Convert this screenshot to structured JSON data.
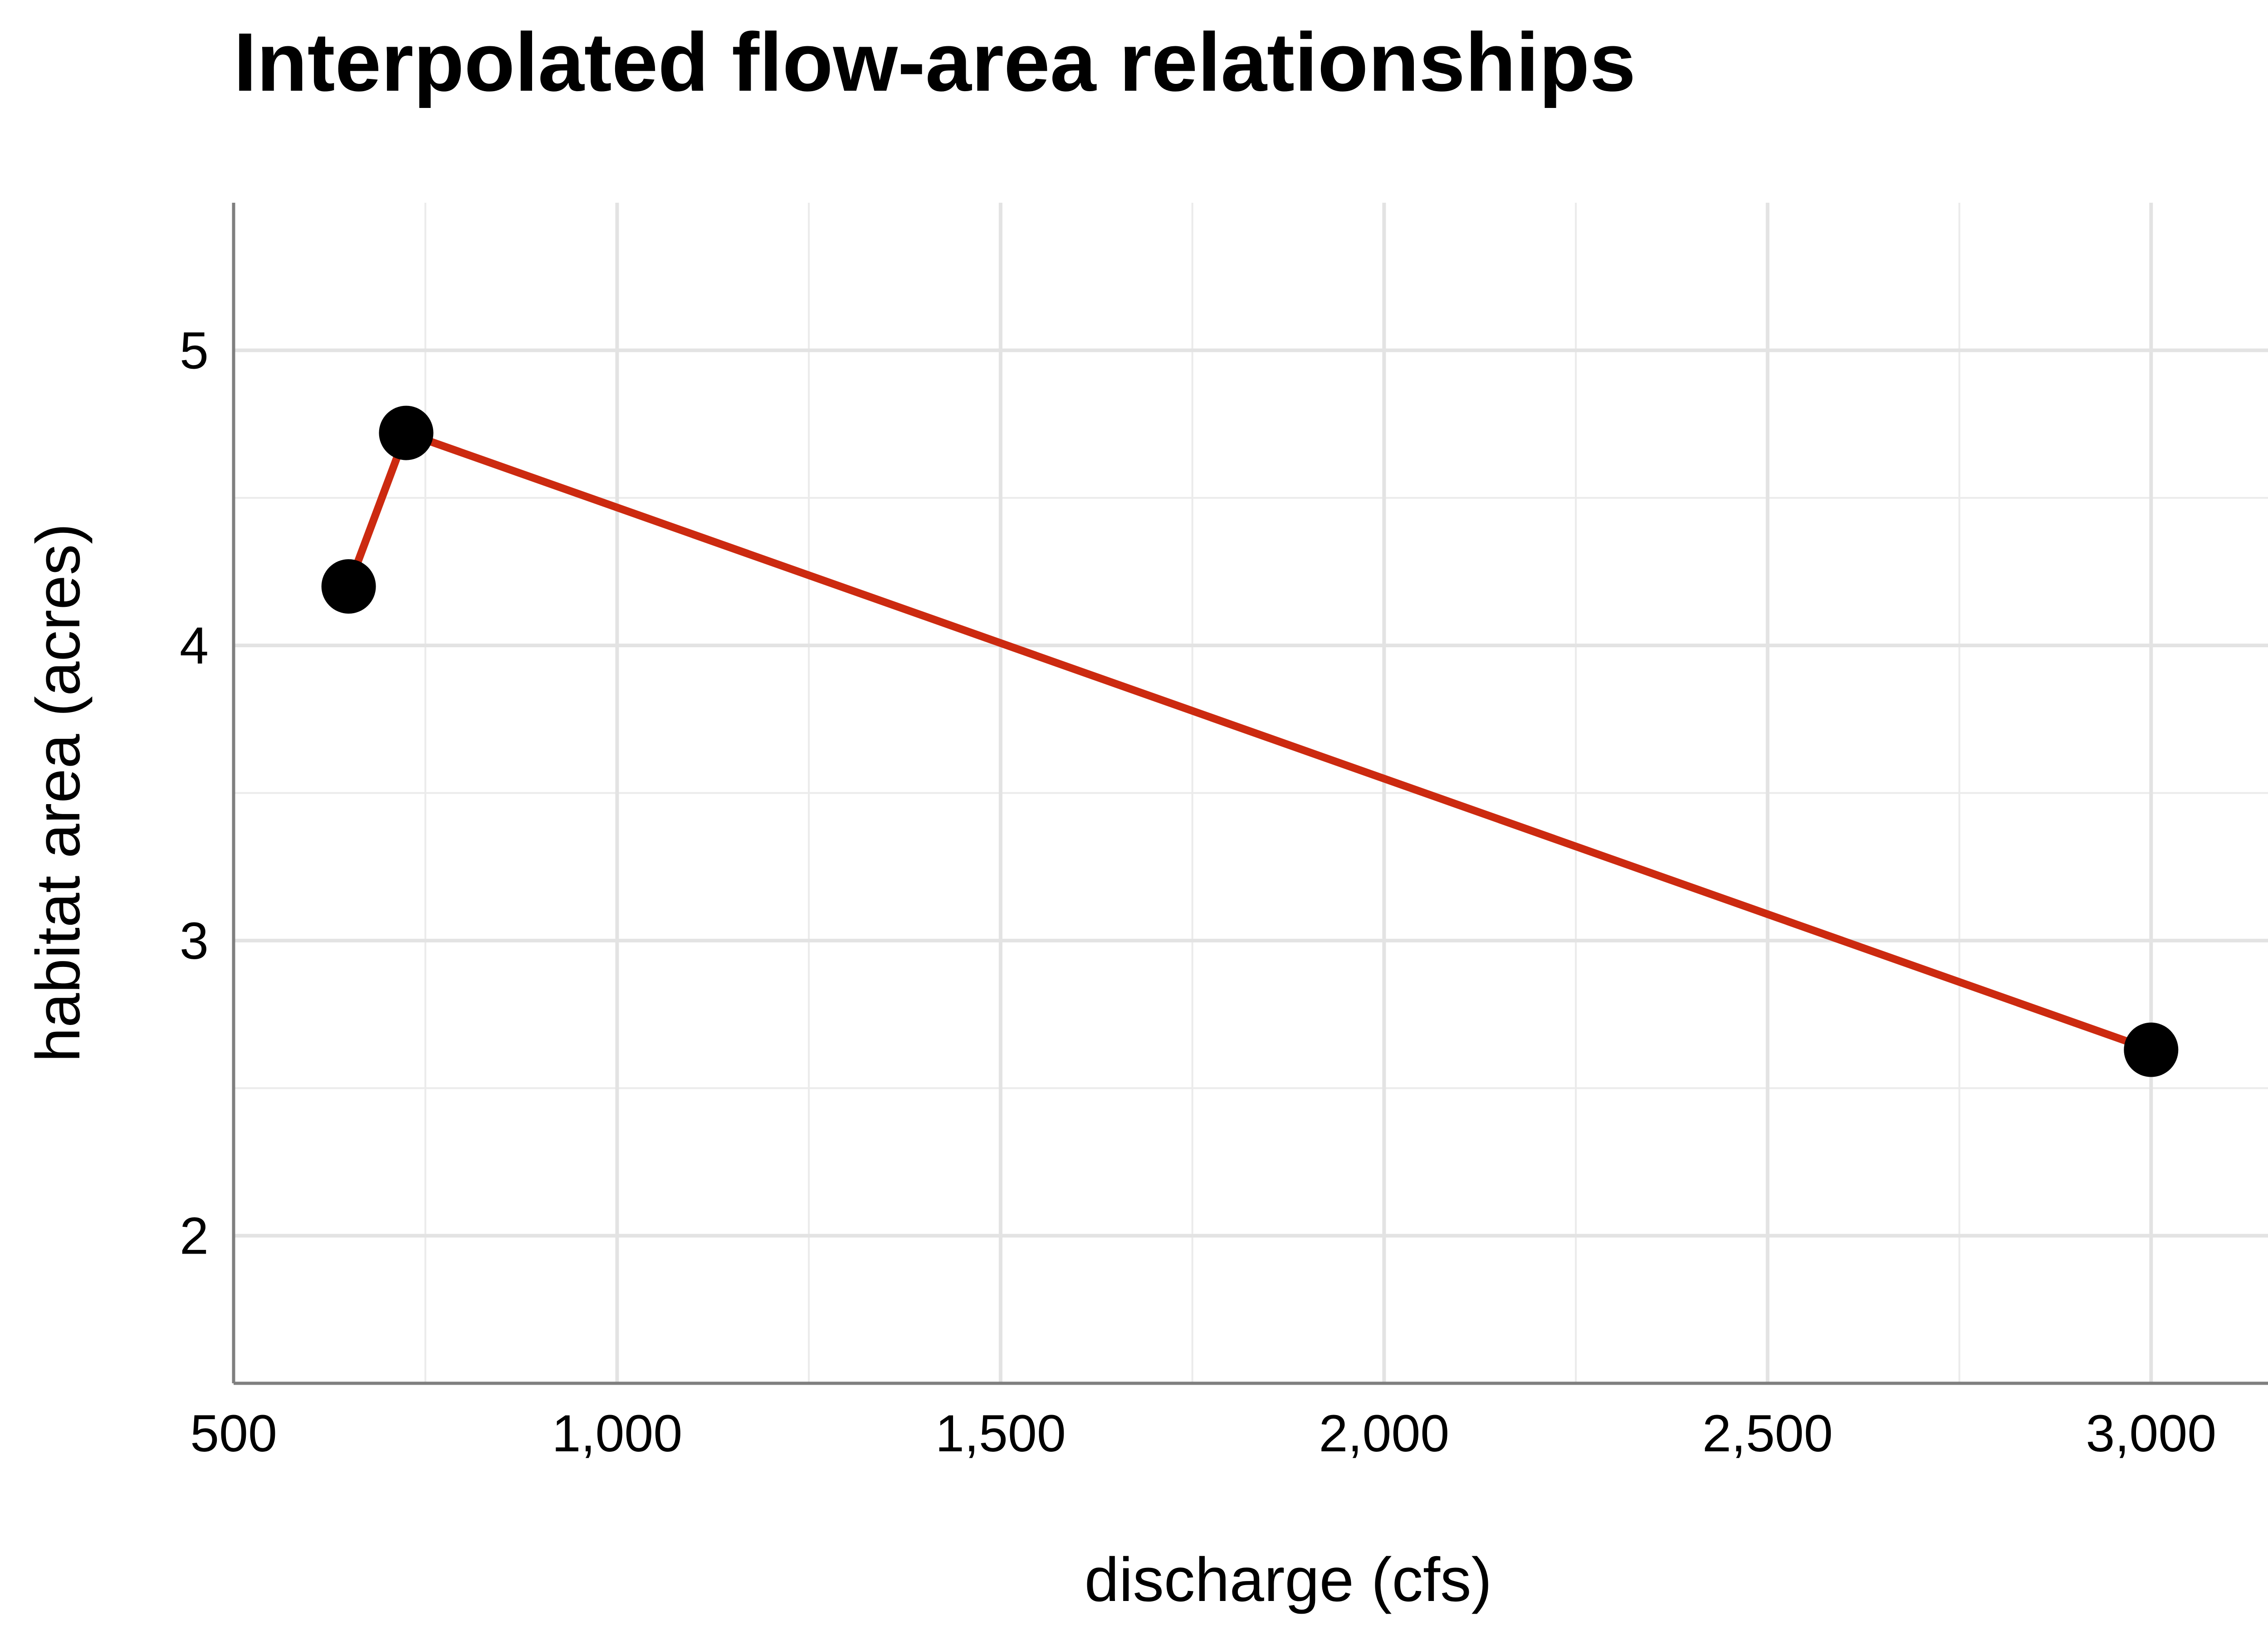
{
  "chart_data": {
    "type": "line",
    "title": "Interpolated flow-area relationships",
    "xlabel": "discharge (cfs)",
    "ylabel": "habitat area (acres)",
    "xlim": [
      500,
      3250
    ],
    "ylim": [
      1.5,
      5.5
    ],
    "x_ticks": [
      500,
      1000,
      1500,
      2000,
      2500,
      3000
    ],
    "x_tick_labels": [
      "500",
      "1,000",
      "1,500",
      "2,000",
      "2,500",
      "3,000"
    ],
    "y_ticks": [
      2,
      3,
      4,
      5
    ],
    "y_tick_labels": [
      "2",
      "3",
      "4",
      "5"
    ],
    "grid": true,
    "legend": "none",
    "series": [
      {
        "color": "#cc2a10",
        "marker_color": "#000000",
        "points": [
          {
            "x": 650,
            "y": 4.2
          },
          {
            "x": 725,
            "y": 4.72
          },
          {
            "x": 3000,
            "y": 2.63
          }
        ]
      }
    ]
  }
}
